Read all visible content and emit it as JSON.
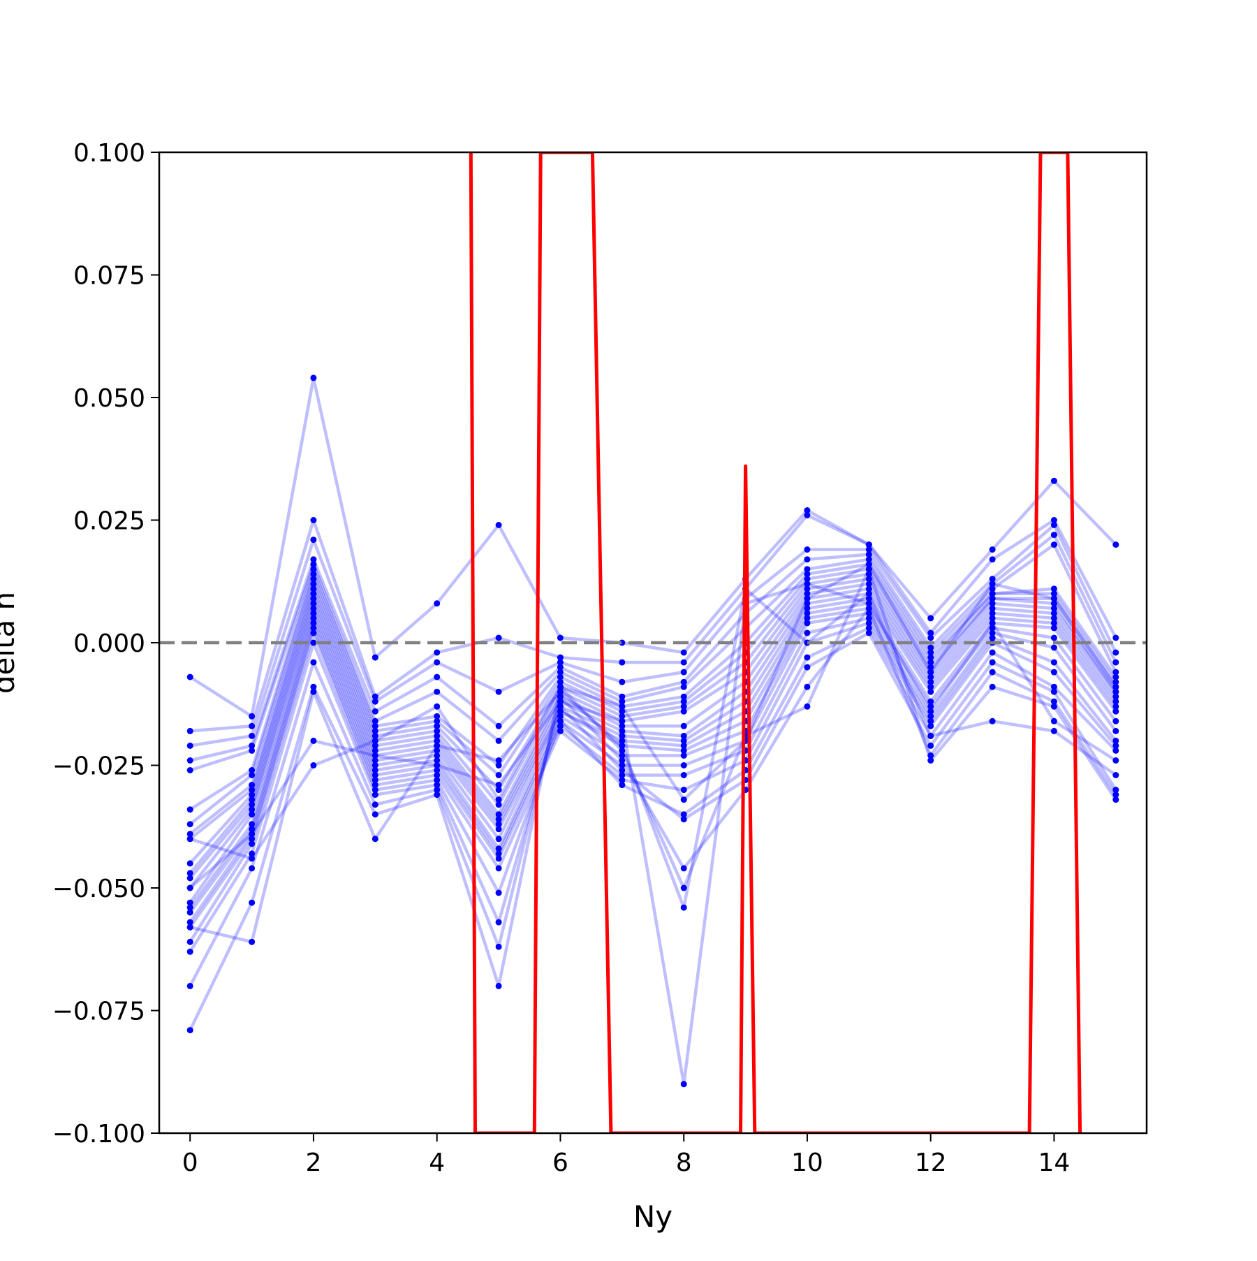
{
  "chart_data": {
    "type": "line",
    "title": "",
    "xlabel": "Ny",
    "ylabel": "delta n",
    "xlim": [
      -0.5,
      15.5
    ],
    "ylim": [
      -0.1,
      0.1
    ],
    "x": [
      0,
      1,
      2,
      3,
      4,
      5,
      6,
      7,
      8,
      9,
      10,
      11,
      12,
      13,
      14,
      15
    ],
    "xticks": [
      0,
      2,
      4,
      6,
      8,
      10,
      12,
      14
    ],
    "xtick_labels": [
      "0",
      "2",
      "4",
      "6",
      "8",
      "10",
      "12",
      "14"
    ],
    "yticks": [
      -0.1,
      -0.075,
      -0.05,
      -0.025,
      0.0,
      0.025,
      0.05,
      0.075,
      0.1
    ],
    "ytick_labels": [
      "−0.100",
      "−0.075",
      "−0.050",
      "−0.025",
      "0.000",
      "0.025",
      "0.050",
      "0.075",
      "0.100"
    ],
    "reference_line": {
      "y": 0.0,
      "style": "dashed",
      "color": "#808080"
    },
    "colors": {
      "series": "#0000ff",
      "mean": "#ff0000"
    },
    "series": [
      {
        "values": [
          -0.007,
          -0.015,
          0.054,
          -0.003,
          0.008,
          0.024,
          0.001,
          0.0,
          -0.002,
          0.013,
          0.027,
          0.02,
          0.005,
          0.019,
          0.033,
          0.02
        ]
      },
      {
        "values": [
          -0.018,
          -0.017,
          0.025,
          -0.011,
          -0.002,
          0.001,
          -0.003,
          -0.004,
          -0.004,
          0.011,
          0.026,
          0.02,
          0.002,
          0.017,
          0.025,
          0.001
        ]
      },
      {
        "values": [
          -0.021,
          -0.019,
          0.021,
          -0.012,
          -0.004,
          -0.01,
          -0.004,
          -0.008,
          -0.006,
          0.009,
          0.019,
          0.019,
          0.001,
          0.013,
          0.024,
          -0.002
        ]
      },
      {
        "values": [
          -0.024,
          -0.021,
          0.017,
          -0.014,
          -0.007,
          -0.017,
          -0.005,
          -0.011,
          -0.008,
          0.006,
          0.017,
          0.018,
          -0.001,
          0.012,
          0.022,
          -0.004
        ]
      },
      {
        "values": [
          -0.026,
          -0.022,
          0.016,
          -0.016,
          -0.01,
          -0.02,
          -0.006,
          -0.012,
          -0.009,
          0.003,
          0.015,
          0.017,
          -0.002,
          0.011,
          0.02,
          -0.006
        ]
      },
      {
        "values": [
          -0.034,
          -0.026,
          0.015,
          -0.017,
          -0.015,
          -0.025,
          -0.007,
          -0.013,
          -0.011,
          0.0,
          0.014,
          0.016,
          -0.003,
          0.01,
          0.011,
          -0.007
        ]
      },
      {
        "values": [
          -0.037,
          -0.027,
          0.014,
          -0.018,
          -0.016,
          -0.027,
          -0.008,
          -0.014,
          -0.012,
          -0.002,
          0.013,
          0.015,
          -0.004,
          0.01,
          0.01,
          -0.008
        ]
      },
      {
        "values": [
          -0.039,
          -0.029,
          0.013,
          -0.019,
          -0.017,
          -0.03,
          -0.009,
          -0.015,
          -0.013,
          -0.004,
          0.012,
          0.014,
          -0.005,
          0.009,
          0.009,
          -0.009
        ]
      },
      {
        "values": [
          -0.04,
          -0.03,
          0.012,
          -0.02,
          -0.018,
          -0.033,
          -0.01,
          -0.016,
          -0.014,
          -0.006,
          0.011,
          0.013,
          -0.006,
          0.009,
          0.008,
          -0.01
        ]
      },
      {
        "values": [
          -0.045,
          -0.031,
          0.011,
          -0.021,
          -0.019,
          -0.035,
          -0.011,
          -0.017,
          -0.017,
          -0.008,
          0.01,
          0.012,
          -0.007,
          0.008,
          0.007,
          -0.01
        ]
      },
      {
        "values": [
          -0.047,
          -0.032,
          0.01,
          -0.022,
          -0.02,
          -0.036,
          -0.012,
          -0.018,
          -0.019,
          -0.01,
          0.009,
          0.011,
          -0.008,
          0.007,
          0.006,
          -0.011
        ]
      },
      {
        "values": [
          -0.048,
          -0.033,
          0.009,
          -0.023,
          -0.021,
          -0.037,
          -0.013,
          -0.019,
          -0.02,
          -0.012,
          0.008,
          0.01,
          -0.009,
          0.006,
          0.005,
          -0.012
        ]
      },
      {
        "values": [
          -0.05,
          -0.034,
          0.008,
          -0.024,
          -0.022,
          -0.038,
          -0.014,
          -0.02,
          -0.021,
          -0.014,
          0.007,
          0.009,
          -0.01,
          0.005,
          0.004,
          -0.013
        ]
      },
      {
        "values": [
          -0.053,
          -0.035,
          0.007,
          -0.025,
          -0.023,
          -0.04,
          -0.014,
          -0.021,
          -0.022,
          -0.016,
          0.006,
          0.008,
          -0.012,
          0.004,
          0.003,
          -0.014
        ]
      },
      {
        "values": [
          -0.054,
          -0.037,
          0.006,
          -0.026,
          -0.024,
          -0.042,
          -0.015,
          -0.023,
          -0.023,
          -0.018,
          0.005,
          0.007,
          -0.013,
          0.003,
          0.001,
          -0.016
        ]
      },
      {
        "values": [
          -0.055,
          -0.038,
          0.005,
          -0.027,
          -0.025,
          -0.043,
          -0.016,
          -0.025,
          -0.025,
          -0.02,
          0.004,
          0.006,
          -0.015,
          0.002,
          -0.001,
          -0.018
        ]
      },
      {
        "values": [
          -0.057,
          -0.039,
          0.004,
          -0.028,
          -0.026,
          -0.044,
          -0.017,
          -0.027,
          -0.027,
          -0.022,
          0.002,
          0.005,
          -0.016,
          0.001,
          -0.004,
          -0.02
        ]
      },
      {
        "values": [
          -0.058,
          -0.04,
          0.003,
          -0.029,
          -0.027,
          -0.046,
          -0.018,
          -0.028,
          -0.03,
          -0.024,
          0.0,
          0.004,
          -0.017,
          0.0,
          -0.006,
          -0.021
        ]
      },
      {
        "values": [
          -0.061,
          -0.041,
          0.002,
          -0.03,
          -0.028,
          -0.051,
          -0.016,
          -0.029,
          -0.035,
          -0.026,
          -0.003,
          0.003,
          -0.019,
          -0.002,
          -0.009,
          -0.022
        ]
      },
      {
        "values": [
          -0.063,
          -0.043,
          0.0,
          -0.031,
          -0.029,
          -0.057,
          -0.013,
          -0.026,
          -0.036,
          -0.028,
          -0.005,
          0.002,
          -0.021,
          -0.004,
          -0.01,
          -0.03
        ]
      },
      {
        "values": [
          -0.07,
          -0.046,
          -0.004,
          -0.033,
          -0.03,
          -0.062,
          -0.011,
          -0.024,
          -0.046,
          -0.03,
          -0.009,
          0.007,
          -0.023,
          -0.006,
          -0.012,
          -0.031
        ]
      },
      {
        "values": [
          -0.079,
          -0.053,
          -0.009,
          -0.035,
          -0.031,
          -0.07,
          -0.009,
          -0.022,
          -0.05,
          -0.019,
          -0.013,
          0.015,
          -0.024,
          -0.009,
          -0.013,
          -0.032
        ]
      },
      {
        "values": [
          -0.058,
          -0.061,
          -0.01,
          -0.04,
          -0.021,
          -0.024,
          -0.01,
          -0.021,
          -0.054,
          0.011,
          0.0,
          0.01,
          -0.019,
          -0.016,
          -0.018,
          -0.027
        ]
      },
      {
        "values": [
          -0.05,
          -0.039,
          -0.02,
          -0.023,
          -0.025,
          -0.029,
          -0.012,
          -0.016,
          -0.09,
          0.008,
          0.012,
          0.008,
          -0.014,
          0.004,
          -0.016,
          -0.024
        ]
      },
      {
        "values": [
          -0.04,
          -0.044,
          -0.025,
          -0.02,
          -0.013,
          -0.032,
          -0.009,
          -0.013,
          -0.032,
          -0.02,
          0.009,
          0.016,
          -0.006,
          0.012,
          0.009,
          -0.009
        ]
      }
    ],
    "mean_series": {
      "x": [
        4.55,
        4.62,
        5.58,
        5.68,
        6.52,
        6.82,
        8.92,
        9.0,
        9.15,
        13.6,
        13.78,
        14.22,
        14.42
      ],
      "values": [
        0.1,
        -0.1,
        -0.1,
        0.1,
        0.1,
        -0.1,
        -0.1,
        0.036,
        -0.1,
        -0.1,
        0.1,
        0.1,
        -0.1
      ]
    }
  }
}
